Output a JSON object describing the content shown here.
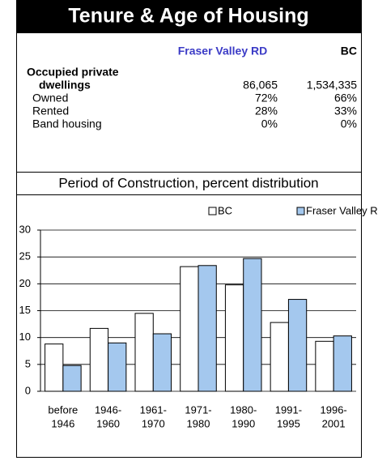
{
  "header": {
    "title": "Tenure & Age of Housing"
  },
  "table": {
    "columns": [
      "Fraser Valley RD",
      "BC"
    ],
    "rows": [
      {
        "label": [
          "Occupied private",
          "dwellings"
        ],
        "values": [
          "86,065",
          "1,534,335"
        ]
      },
      {
        "label": "Owned",
        "values": [
          "72%",
          "66%"
        ]
      },
      {
        "label": "Rented",
        "values": [
          "28%",
          "33%"
        ]
      },
      {
        "label": "Band housing",
        "values": [
          "0%",
          "0%"
        ]
      }
    ]
  },
  "chart_data": {
    "type": "bar",
    "title": "Period of Construction, percent distribution",
    "categories": [
      [
        "before",
        "1946"
      ],
      [
        "1946-",
        "1960"
      ],
      [
        "1961-",
        "1970"
      ],
      [
        "1971-",
        "1980"
      ],
      [
        "1980-",
        "1990"
      ],
      [
        "1991-",
        "1995"
      ],
      [
        "1996-",
        "2001"
      ]
    ],
    "series": [
      {
        "name": "BC",
        "color": "#ffffff",
        "values": [
          8.8,
          11.7,
          14.5,
          23.2,
          19.8,
          12.8,
          9.3
        ]
      },
      {
        "name": "Fraser Valley RD",
        "color": "#a4c8ee",
        "values": [
          4.8,
          9.0,
          10.7,
          23.4,
          24.7,
          17.1,
          10.3
        ]
      }
    ],
    "ylim": [
      0,
      30
    ],
    "yticks": [
      0,
      5,
      10,
      15,
      20,
      25,
      30
    ],
    "grid": true,
    "legend": "top"
  }
}
